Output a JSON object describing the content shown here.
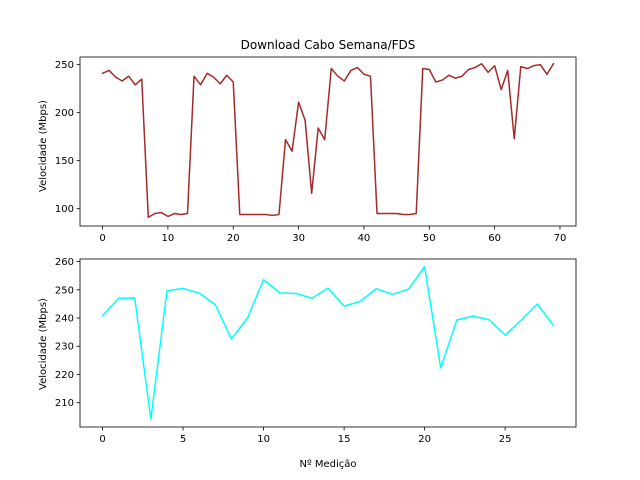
{
  "chart_data": [
    {
      "type": "line",
      "title": "Download Cabo Semana/FDS",
      "xlabel": "",
      "ylabel": "Velocidade (Mbps)",
      "xlim": [
        -3.45,
        72.45
      ],
      "ylim": [
        82,
        258
      ],
      "xticks": [
        0,
        10,
        20,
        30,
        40,
        50,
        60,
        70
      ],
      "yticks": [
        100,
        150,
        200,
        250
      ],
      "grid": false,
      "series": [
        {
          "color": "#a52a2a",
          "x": [
            0,
            1,
            2,
            3,
            4,
            5,
            6,
            7,
            8,
            9,
            10,
            11,
            12,
            13,
            14,
            15,
            16,
            17,
            18,
            19,
            20,
            21,
            22,
            23,
            24,
            25,
            26,
            27,
            28,
            29,
            30,
            31,
            32,
            33,
            34,
            35,
            36,
            37,
            38,
            39,
            40,
            41,
            42,
            43,
            44,
            45,
            46,
            47,
            48,
            49,
            50,
            51,
            52,
            53,
            54,
            55,
            56,
            57,
            58,
            59,
            60,
            61,
            62,
            63,
            64,
            65,
            66,
            67,
            68,
            69
          ],
          "values": [
            241,
            244,
            237,
            233,
            238,
            229,
            235,
            91,
            95,
            96,
            92,
            95,
            94,
            95,
            238,
            229,
            241,
            237,
            230,
            239,
            232,
            94,
            94,
            94,
            94,
            94,
            93,
            94,
            172,
            160,
            211,
            192,
            116,
            184,
            172,
            246,
            238,
            233,
            244,
            247,
            240,
            238,
            95,
            95,
            95,
            95,
            94,
            94,
            95,
            246,
            245,
            232,
            234,
            239,
            236,
            238,
            245,
            247,
            251,
            242,
            249,
            224,
            244,
            173,
            248,
            246,
            249,
            250,
            240,
            251
          ]
        }
      ]
    },
    {
      "type": "line",
      "title": "",
      "xlabel": "Nº Medição",
      "ylabel": "Velocidade (Mbps)",
      "xlim": [
        -1.4,
        29.4
      ],
      "ylim": [
        201.4,
        260.9
      ],
      "xticks": [
        0,
        5,
        10,
        15,
        20,
        25
      ],
      "yticks": [
        210,
        220,
        230,
        240,
        250,
        260
      ],
      "grid": false,
      "series": [
        {
          "color": "#00ffff",
          "x": [
            0,
            1,
            2,
            3,
            4,
            5,
            6,
            7,
            8,
            9,
            10,
            11,
            12,
            13,
            14,
            15,
            16,
            17,
            18,
            19,
            20,
            21,
            22,
            23,
            24,
            25,
            26,
            27,
            28
          ],
          "values": [
            240.8,
            247,
            247.1,
            204.2,
            249.6,
            250.5,
            248.8,
            244.7,
            232.6,
            240,
            253.6,
            248.9,
            248.7,
            247,
            250.6,
            244.2,
            245.9,
            250.4,
            248.4,
            250.2,
            258.2,
            222.3,
            239.3,
            240.7,
            239.4,
            233.9,
            239.3,
            245,
            237.3
          ]
        }
      ]
    }
  ]
}
